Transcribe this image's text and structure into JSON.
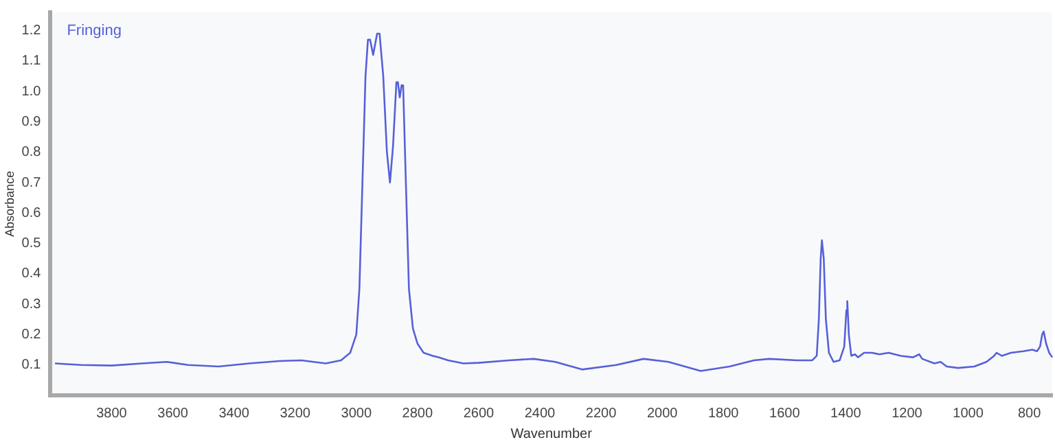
{
  "chart_data": {
    "type": "line",
    "xlabel": "Wavenumber",
    "ylabel": "Absorbance",
    "legend": "top left",
    "marker": "none",
    "line_style": "solid",
    "xlim": [
      4000,
      725
    ],
    "xticks": [
      3800,
      3600,
      3400,
      3200,
      3000,
      2800,
      2600,
      2400,
      2200,
      2000,
      1800,
      1600,
      1400,
      1200,
      1000,
      800
    ],
    "ylim": [
      0,
      1.26
    ],
    "yticks": [
      0.1,
      0.2,
      0.3,
      0.4,
      0.5,
      0.6,
      0.7,
      0.8,
      0.9,
      {
        "value": 1,
        "label": "1.0"
      },
      1.1,
      1.2
    ],
    "series": [
      {
        "name": "Fringing",
        "color": "#5560d8",
        "x": [
          3985,
          3900,
          3800,
          3700,
          3620,
          3550,
          3450,
          3350,
          3250,
          3180,
          3100,
          3050,
          3020,
          3000,
          2990,
          2980,
          2970,
          2962,
          2955,
          2945,
          2932,
          2924,
          2912,
          2900,
          2890,
          2880,
          2869,
          2864,
          2858,
          2852,
          2847,
          2838,
          2828,
          2815,
          2800,
          2780,
          2750,
          2730,
          2700,
          2650,
          2600,
          2500,
          2420,
          2350,
          2262,
          2150,
          2061,
          1980,
          1874,
          1780,
          1700,
          1650,
          1560,
          1510,
          1495,
          1488,
          1482,
          1478,
          1472,
          1465,
          1455,
          1440,
          1420,
          1405,
          1398,
          1395,
          1390,
          1382,
          1370,
          1360,
          1340,
          1314,
          1290,
          1260,
          1220,
          1180,
          1160,
          1150,
          1110,
          1090,
          1070,
          1033,
          980,
          940,
          915,
          907,
          890,
          860,
          820,
          790,
          775,
          765,
          758,
          753,
          745,
          735,
          725
        ],
        "values": [
          0.105,
          0.1,
          0.098,
          0.105,
          0.11,
          0.1,
          0.095,
          0.105,
          0.113,
          0.115,
          0.105,
          0.115,
          0.14,
          0.2,
          0.35,
          0.7,
          1.05,
          1.17,
          1.17,
          1.12,
          1.19,
          1.19,
          1.05,
          0.8,
          0.7,
          0.82,
          1.03,
          1.03,
          0.98,
          1.02,
          1.02,
          0.7,
          0.35,
          0.22,
          0.17,
          0.14,
          0.13,
          0.125,
          0.115,
          0.105,
          0.107,
          0.115,
          0.12,
          0.11,
          0.085,
          0.1,
          0.12,
          0.11,
          0.08,
          0.095,
          0.115,
          0.12,
          0.115,
          0.115,
          0.13,
          0.25,
          0.45,
          0.51,
          0.45,
          0.25,
          0.14,
          0.11,
          0.115,
          0.16,
          0.28,
          0.31,
          0.2,
          0.13,
          0.135,
          0.125,
          0.14,
          0.14,
          0.135,
          0.14,
          0.13,
          0.125,
          0.135,
          0.12,
          0.105,
          0.11,
          0.095,
          0.09,
          0.095,
          0.11,
          0.13,
          0.14,
          0.13,
          0.14,
          0.145,
          0.15,
          0.145,
          0.16,
          0.2,
          0.21,
          0.17,
          0.14,
          0.125
        ]
      }
    ]
  }
}
